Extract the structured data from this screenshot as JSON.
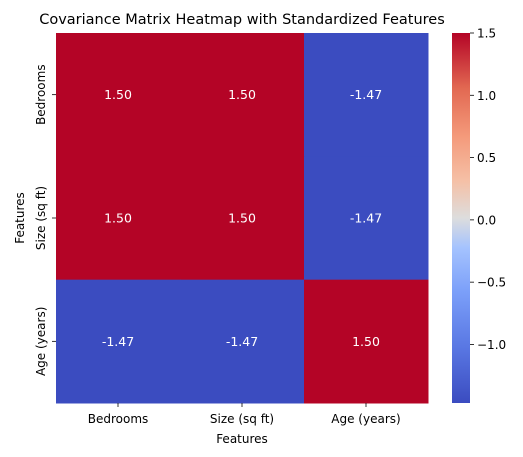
{
  "chart_data": {
    "type": "heatmap",
    "title": "Covariance Matrix Heatmap with Standardized Features",
    "xlabel": "Features",
    "ylabel": "Features",
    "x_categories": [
      "Bedrooms",
      "Size (sq ft)",
      "Age (years)"
    ],
    "y_categories": [
      "Bedrooms",
      "Size (sq ft)",
      "Age (years)"
    ],
    "values": [
      [
        1.5,
        1.5,
        -1.47
      ],
      [
        1.5,
        1.5,
        -1.47
      ],
      [
        -1.47,
        -1.47,
        1.5
      ]
    ],
    "value_labels": [
      [
        "1.50",
        "1.50",
        "-1.47"
      ],
      [
        "1.50",
        "1.50",
        "-1.47"
      ],
      [
        "-1.47",
        "-1.47",
        "1.50"
      ]
    ],
    "colormap": "coolwarm",
    "colormap_stops": [
      "#3b4cc0",
      "#dddddd",
      "#b40426"
    ],
    "colorbar": {
      "range": [
        -1.47,
        1.5
      ],
      "ticks": [
        1.5,
        1.0,
        0.5,
        0.0,
        -0.5,
        -1.0
      ],
      "tick_labels": [
        "1.5",
        "1.0",
        "0.5",
        "0.0",
        "−0.5",
        "−1.0"
      ]
    },
    "annotation_color": "#ffffff",
    "grid": false
  }
}
